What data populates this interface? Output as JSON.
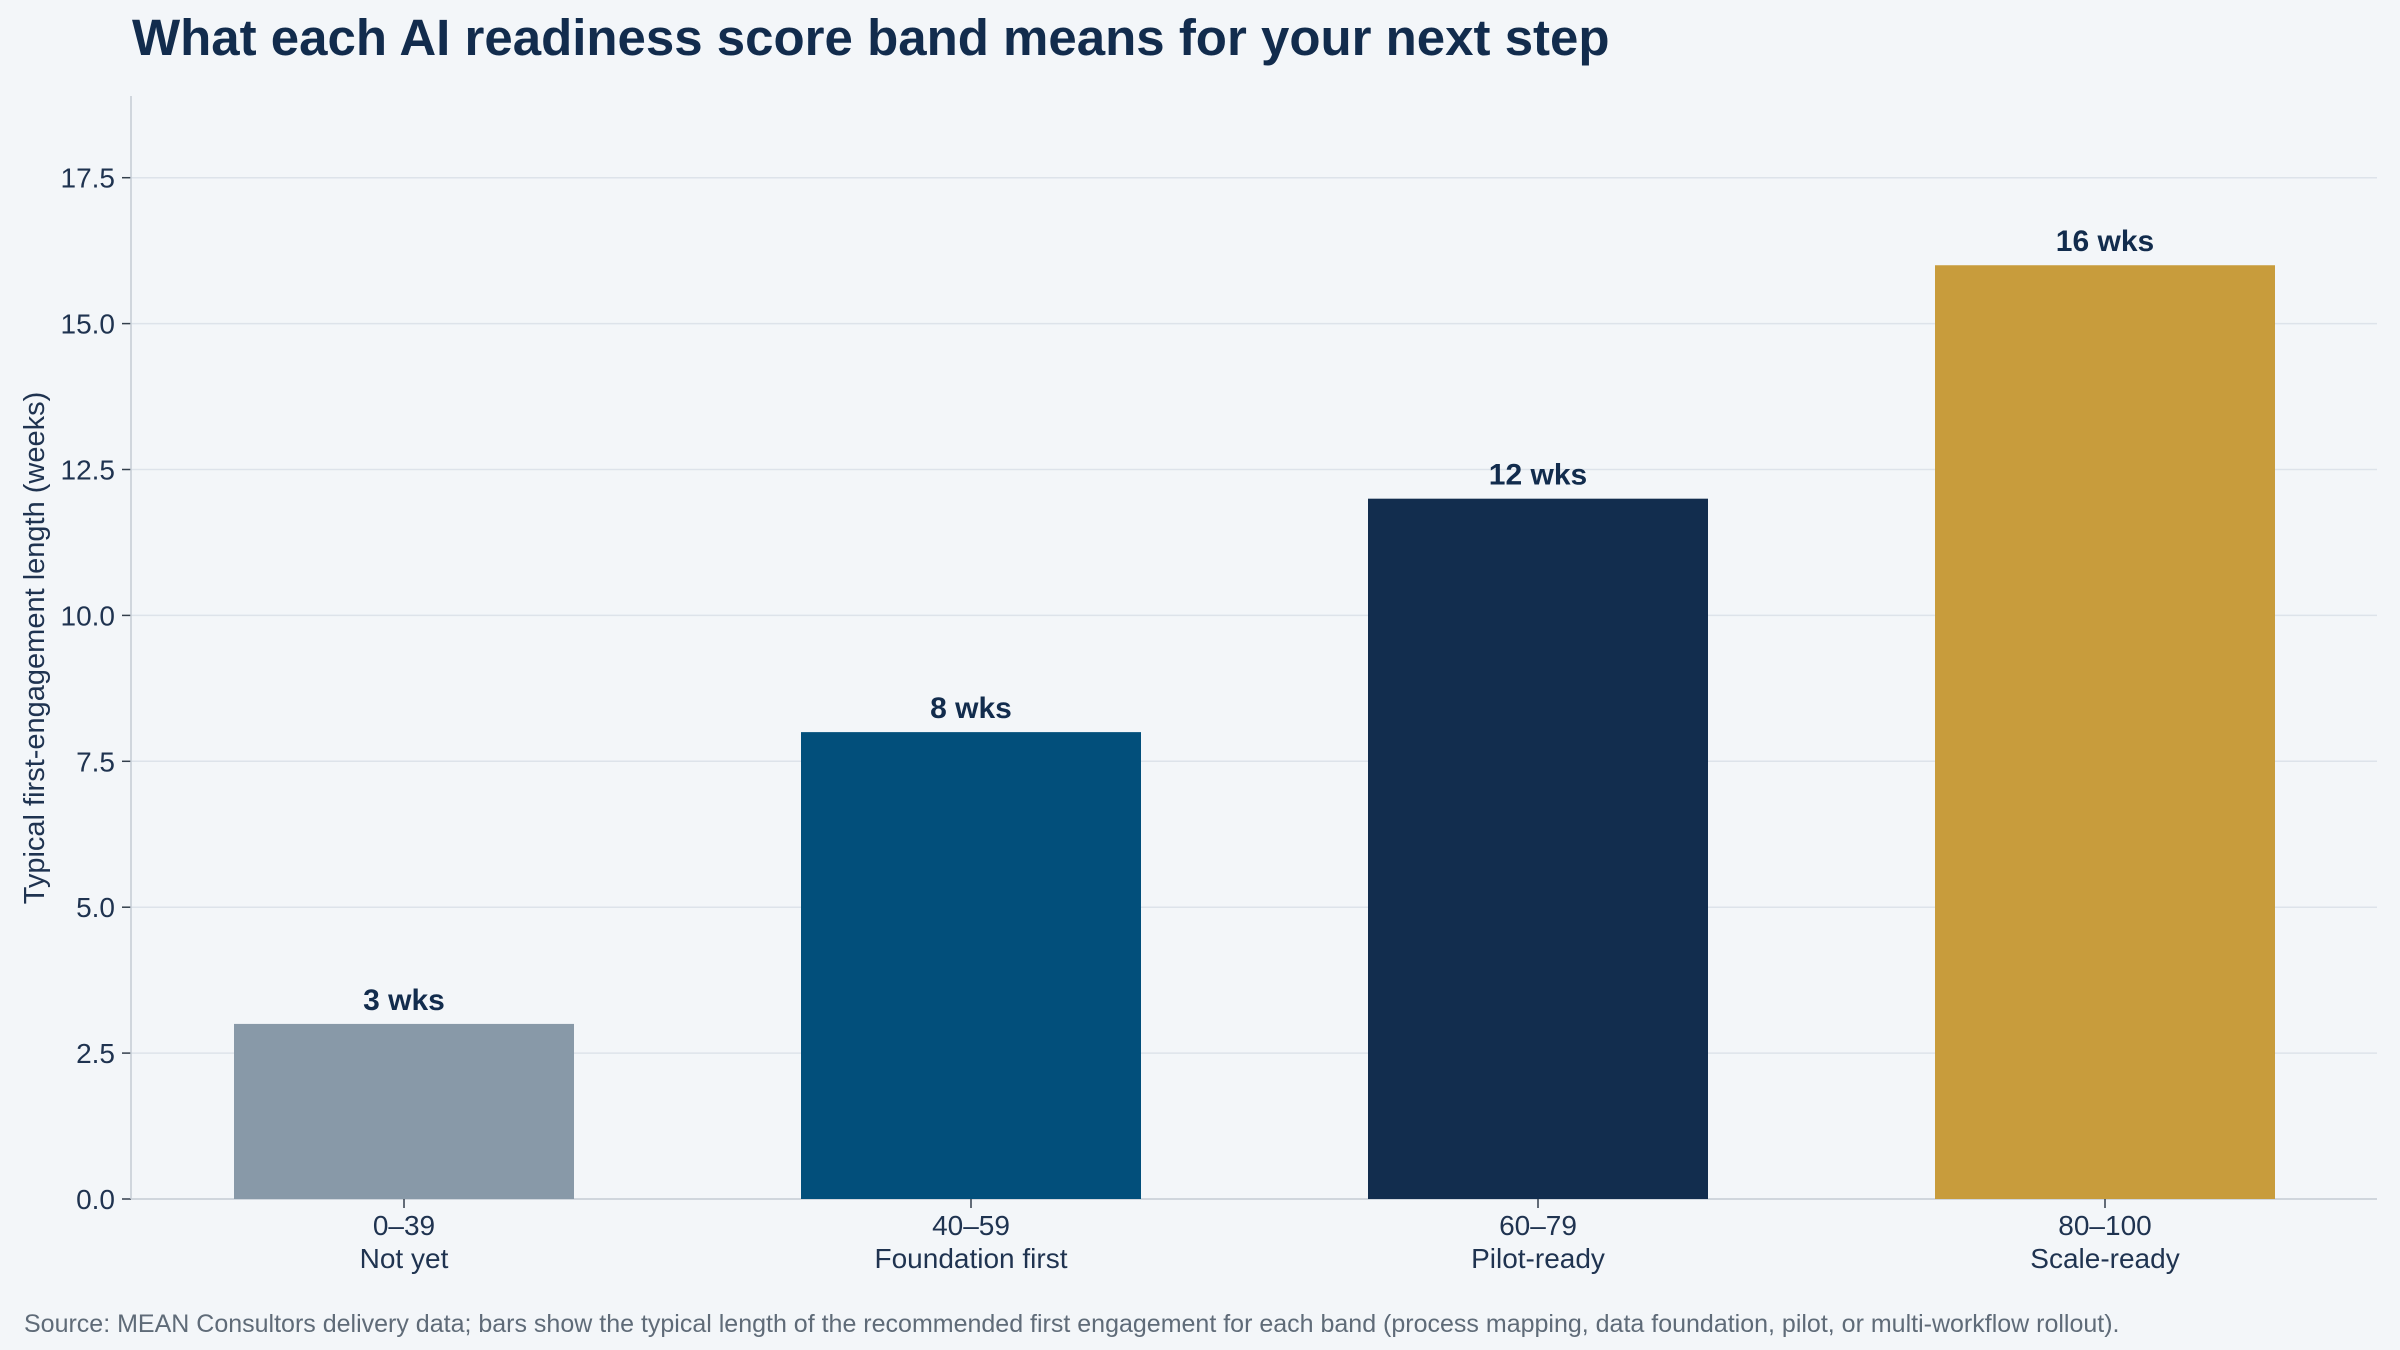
{
  "chart_data": {
    "type": "bar",
    "title": "What each AI readiness score band means for your next step",
    "ylabel": "Typical first-engagement length (weeks)",
    "xlabel": "",
    "categories": [
      "0–39",
      "40–59",
      "60–79",
      "80–100"
    ],
    "sublabels": [
      "Not yet",
      "Foundation first",
      "Pilot-ready",
      "Scale-ready"
    ],
    "values": [
      3,
      8,
      12,
      16
    ],
    "value_labels": [
      "3 wks",
      "8 wks",
      "12 wks",
      "16 wks"
    ],
    "colors": [
      "#8899a8",
      "#024f7b",
      "#122d4e",
      "#c89c3c"
    ],
    "ylim": [
      0,
      18.9
    ],
    "yticks": [
      0.0,
      2.5,
      5.0,
      7.5,
      10.0,
      12.5,
      15.0,
      17.5
    ],
    "ytick_labels": [
      "0.0",
      "2.5",
      "5.0",
      "7.5",
      "10.0",
      "12.5",
      "15.0",
      "17.5"
    ],
    "grid": "horizontal",
    "legend": "none"
  },
  "footer": {
    "source": "Source: MEAN Consultors delivery data; bars show the typical length of the recommended first engagement for each band (process mapping, data foundation, pilot, or multi-workflow rollout)."
  }
}
